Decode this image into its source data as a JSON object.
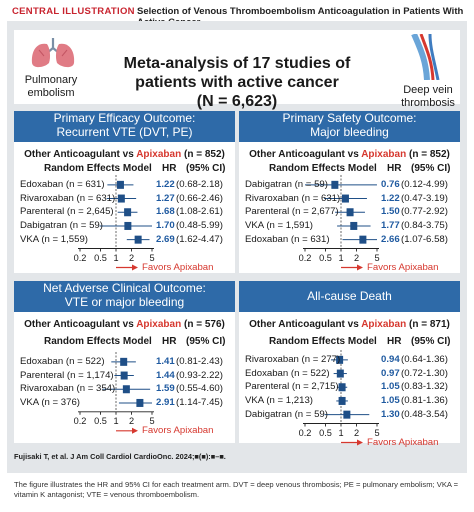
{
  "topbar": {
    "category": "CENTRAL ILLUSTRATION",
    "title": "Selection of Venous Thromboembolism Anticoagulation in Patients With Active Cancer"
  },
  "header": {
    "title": "Meta-analysis of 17 studies of patients with active cancer",
    "subtitle": "(N = 6,623)",
    "left_label": [
      "Pulmonary",
      "embolism"
    ],
    "right_label": [
      "Deep vein",
      "thrombosis"
    ],
    "left_icon": "lungs-icon",
    "right_icon": "veins-icon"
  },
  "colors": {
    "panel_header": "#2e6aa8",
    "apixaban": "#d6382f",
    "hr_text": "#1f5aa0",
    "marker": "#1f4f87",
    "frame": "#e3e6e9"
  },
  "chart_data": [
    {
      "type": "forest",
      "title": [
        "Primary Efficacy Outcome:",
        "Recurrent VTE (DVT, PE)"
      ],
      "comparison": {
        "prefix": "Other Anticoagulant vs ",
        "drug": "Apixaban",
        "suffix": " (n = 852)"
      },
      "column_headers": {
        "model": "Random Effects Model",
        "hr": "HR",
        "ci": "(95% CI)"
      },
      "x_ticks": [
        "0.2",
        "0.5",
        "1",
        "2",
        "5"
      ],
      "log_scale": true,
      "favors": "Favors Apixaban",
      "rows": [
        {
          "label": "Edoxaban (n = 631)",
          "hr": 1.22,
          "lo": 0.68,
          "hi": 2.18,
          "hr_text": "1.22",
          "ci_text": "(0.68-2.18)"
        },
        {
          "label": "Rivaroxaban (n = 631)",
          "hr": 1.27,
          "lo": 0.66,
          "hi": 2.46,
          "hr_text": "1.27",
          "ci_text": "(0.66-2.46)"
        },
        {
          "label": "Parenteral (n = 2,645)",
          "hr": 1.68,
          "lo": 1.08,
          "hi": 2.61,
          "hr_text": "1.68",
          "ci_text": "(1.08-2.61)"
        },
        {
          "label": "Dabigatran (n = 59)",
          "hr": 1.7,
          "lo": 0.48,
          "hi": 5.99,
          "hr_text": "1.70",
          "ci_text": "(0.48-5.99)"
        },
        {
          "label": "VKA (n = 1,559)",
          "hr": 2.69,
          "lo": 1.62,
          "hi": 4.47,
          "hr_text": "2.69",
          "ci_text": "(1.62-4.47)"
        }
      ]
    },
    {
      "type": "forest",
      "title": [
        "Primary Safety Outcome:",
        "Major bleeding"
      ],
      "comparison": {
        "prefix": "Other Anticoagulant vs ",
        "drug": "Apixaban",
        "suffix": " (n = 852)"
      },
      "column_headers": {
        "model": "Random Effects Model",
        "hr": "HR",
        "ci": "(95% CI)"
      },
      "x_ticks": [
        "0.2",
        "0.5",
        "1",
        "2",
        "5"
      ],
      "log_scale": true,
      "favors": "Favors Apixaban",
      "rows": [
        {
          "label": "Dabigatran (n = 59)",
          "hr": 0.76,
          "lo": 0.12,
          "hi": 4.99,
          "hr_text": "0.76",
          "ci_text": "(0.12-4.99)"
        },
        {
          "label": "Rivaroxaban (n = 631)",
          "hr": 1.22,
          "lo": 0.47,
          "hi": 3.19,
          "hr_text": "1.22",
          "ci_text": "(0.47-3.19)"
        },
        {
          "label": "Parenteral (n = 2,677)",
          "hr": 1.5,
          "lo": 0.77,
          "hi": 2.92,
          "hr_text": "1.50",
          "ci_text": "(0.77-2.92)"
        },
        {
          "label": "VKA (n = 1,591)",
          "hr": 1.77,
          "lo": 0.84,
          "hi": 3.75,
          "hr_text": "1.77",
          "ci_text": "(0.84-3.75)"
        },
        {
          "label": "Edoxaban (n = 631)",
          "hr": 2.66,
          "lo": 1.07,
          "hi": 6.58,
          "hr_text": "2.66",
          "ci_text": "(1.07-6.58)"
        }
      ]
    },
    {
      "type": "forest",
      "title": [
        "Net Adverse Clinical Outcome:",
        "VTE or major bleeding"
      ],
      "comparison": {
        "prefix": "Other Anticoagulant vs ",
        "drug": "Apixaban",
        "suffix": " (n = 576)"
      },
      "column_headers": {
        "model": "Random Effects Model",
        "hr": "HR",
        "ci": "(95% CI)"
      },
      "x_ticks": [
        "0.2",
        "0.5",
        "1",
        "2",
        "5"
      ],
      "log_scale": true,
      "favors": "Favors Apixaban",
      "rows": [
        {
          "label": "Edoxaban (n = 522)",
          "hr": 1.41,
          "lo": 0.81,
          "hi": 2.43,
          "hr_text": "1.41",
          "ci_text": "(0.81-2.43)"
        },
        {
          "label": "Parenteral (n = 1,174)",
          "hr": 1.44,
          "lo": 0.93,
          "hi": 2.22,
          "hr_text": "1.44",
          "ci_text": "(0.93-2.22)"
        },
        {
          "label": "Rivaroxaban (n = 354)",
          "hr": 1.59,
          "lo": 0.55,
          "hi": 4.6,
          "hr_text": "1.59",
          "ci_text": "(0.55-4.60)"
        },
        {
          "label": "VKA (n = 376)",
          "hr": 2.91,
          "lo": 1.14,
          "hi": 7.45,
          "hr_text": "2.91",
          "ci_text": "(1.14-7.45)"
        }
      ]
    },
    {
      "type": "forest",
      "title": [
        "All-cause Death"
      ],
      "comparison": {
        "prefix": "Other Anticoagulant vs ",
        "drug": "Apixaban",
        "suffix": " (n = 871)"
      },
      "column_headers": {
        "model": "Random Effects Model",
        "hr": "HR",
        "ci": "(95% CI)"
      },
      "x_ticks": [
        "0.2",
        "0.5",
        "1",
        "2",
        "5"
      ],
      "log_scale": true,
      "favors": "Favors Apixaban",
      "rows": [
        {
          "label": "Rivaroxaban (n = 277)",
          "hr": 0.94,
          "lo": 0.64,
          "hi": 1.36,
          "hr_text": "0.94",
          "ci_text": "(0.64-1.36)"
        },
        {
          "label": "Edoxaban (n = 522)",
          "hr": 0.97,
          "lo": 0.72,
          "hi": 1.3,
          "hr_text": "0.97",
          "ci_text": "(0.72-1.30)"
        },
        {
          "label": "Parenteral (n = 2,715)",
          "hr": 1.05,
          "lo": 0.83,
          "hi": 1.32,
          "hr_text": "1.05",
          "ci_text": "(0.83-1.32)"
        },
        {
          "label": "VKA (n = 1,213)",
          "hr": 1.05,
          "lo": 0.81,
          "hi": 1.36,
          "hr_text": "1.05",
          "ci_text": "(0.81-1.36)"
        },
        {
          "label": "Dabigatran (n = 59)",
          "hr": 1.3,
          "lo": 0.48,
          "hi": 3.54,
          "hr_text": "1.30",
          "ci_text": "(0.48-3.54)"
        }
      ]
    }
  ],
  "footer": {
    "citation": "Fujisaki T, et al. J Am Coll Cardiol CardioOnc. 2024;■(■):■–■.",
    "caption": "The figure illustrates the HR and 95% CI for each treatment arm. DVT = deep venous thrombosis; PE = pulmonary embolism; VKA = vitamin K antagonist; VTE = venous thromboembolism."
  }
}
